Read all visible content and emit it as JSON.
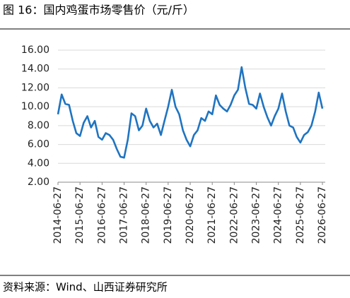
{
  "chart_data": {
    "type": "line",
    "title": "图 16：国内鸡蛋市场零售价（元/斤）",
    "source": "资料来源：Wind、山西证券研究所",
    "x": [
      "2014-06-27",
      "2014-08-27",
      "2014-10-27",
      "2014-12-27",
      "2015-02-27",
      "2015-04-27",
      "2015-06-27",
      "2015-08-27",
      "2015-10-27",
      "2015-12-27",
      "2016-02-27",
      "2016-04-27",
      "2016-06-27",
      "2016-08-27",
      "2016-10-27",
      "2016-12-27",
      "2017-02-27",
      "2017-04-27",
      "2017-06-27",
      "2017-08-27",
      "2017-10-27",
      "2017-12-27",
      "2018-02-27",
      "2018-04-27",
      "2018-06-27",
      "2018-08-27",
      "2018-10-27",
      "2018-12-27",
      "2019-02-27",
      "2019-04-27",
      "2019-06-27",
      "2019-08-27",
      "2019-10-27",
      "2019-12-27",
      "2020-02-27",
      "2020-04-27",
      "2020-06-27",
      "2020-08-27",
      "2020-10-27",
      "2020-12-27",
      "2021-02-27",
      "2021-04-27",
      "2021-06-27",
      "2021-08-27",
      "2021-10-27",
      "2021-12-27",
      "2022-02-27",
      "2022-04-27",
      "2022-06-27",
      "2022-08-27",
      "2022-10-27",
      "2022-12-27",
      "2023-02-27",
      "2023-04-27",
      "2023-06-27",
      "2023-08-27",
      "2023-10-27",
      "2023-12-27",
      "2024-02-27",
      "2024-04-27",
      "2024-06-27",
      "2024-08-27",
      "2024-10-27",
      "2024-12-27",
      "2025-02-27",
      "2025-04-27",
      "2025-06-27",
      "2025-08-27",
      "2025-10-27",
      "2025-12-27",
      "2026-02-27",
      "2026-04-27",
      "2026-06-27"
    ],
    "series": [
      {
        "color": "#1f74c1",
        "values": [
          9.2,
          11.3,
          10.3,
          10.2,
          8.5,
          7.2,
          6.9,
          8.3,
          9.0,
          7.8,
          8.5,
          6.8,
          6.5,
          7.2,
          7.0,
          6.5,
          5.5,
          4.7,
          4.6,
          6.5,
          9.3,
          9.0,
          7.5,
          8.0,
          9.8,
          8.5,
          7.8,
          8.2,
          7.0,
          8.5,
          10.0,
          11.8,
          10.0,
          9.2,
          7.5,
          6.5,
          5.8,
          7.0,
          7.5,
          8.8,
          8.5,
          9.5,
          9.2,
          11.2,
          10.2,
          9.8,
          9.5,
          10.2,
          11.2,
          11.8,
          14.2,
          12.0,
          10.3,
          10.2,
          9.8,
          11.4,
          10.0,
          8.9,
          8.0,
          9.0,
          9.8,
          11.4,
          9.5,
          8.0,
          7.8,
          6.8,
          6.2,
          7.0,
          7.3,
          8.0,
          9.5,
          11.5,
          9.8
        ]
      }
    ],
    "xlim": [
      "2014-06-27",
      "2026-06-27"
    ],
    "xticks": [
      "2014-06-27",
      "2015-06-27",
      "2016-06-27",
      "2017-06-27",
      "2018-06-27",
      "2019-06-27",
      "2020-06-27",
      "2021-06-27",
      "2022-06-27",
      "2023-06-27",
      "2024-06-27",
      "2025-06-27",
      "2026-06-27"
    ],
    "ylim": [
      2,
      16
    ],
    "yticks": [
      {
        "value": 2,
        "label": "2.00"
      },
      {
        "value": 4,
        "label": "4.00"
      },
      {
        "value": 6,
        "label": "6.00"
      },
      {
        "value": 8,
        "label": "8.00"
      },
      {
        "value": 10,
        "label": "10.00"
      },
      {
        "value": 12,
        "label": "12.00"
      },
      {
        "value": 14,
        "label": "14.00"
      },
      {
        "value": 16,
        "label": "16.00"
      }
    ],
    "grid": true
  }
}
